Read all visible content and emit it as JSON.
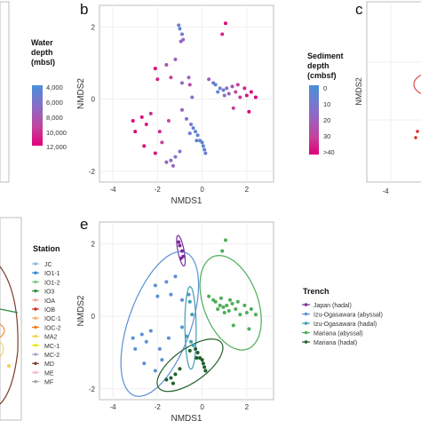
{
  "panel_labels": [
    "b",
    "c",
    "e"
  ],
  "colors": {
    "frame": "#bdbdbd",
    "grid": "#efefef",
    "depth_gradient": [
      "#4a90d9",
      "#8a6cc7",
      "#c4419c",
      "#e1007a"
    ]
  },
  "left_legend_top": {
    "title_line1": "Water",
    "title_line2": "depth",
    "title_line3": "(mbsl)",
    "ticks": [
      "4,000",
      "6,000",
      "8,000",
      "10,000",
      "12,000"
    ]
  },
  "station_legend": {
    "title": "Station",
    "items": [
      {
        "label": "JC",
        "color": "#8bb8e0"
      },
      {
        "label": "IO1-1",
        "color": "#2e82c8"
      },
      {
        "label": "IO1-2",
        "color": "#7bc67e"
      },
      {
        "label": "IO3",
        "color": "#2e8b3e"
      },
      {
        "label": "IOA",
        "color": "#f4a6a0"
      },
      {
        "label": "IOB",
        "color": "#d7261e"
      },
      {
        "label": "IOC-1",
        "color": "#f7b26a"
      },
      {
        "label": "IOC-2",
        "color": "#ef7d1a"
      },
      {
        "label": "MA2",
        "color": "#f2d24a"
      },
      {
        "label": "MC-1",
        "color": "#e6e600"
      },
      {
        "label": "MC-2",
        "color": "#b5a0d0"
      },
      {
        "label": "MD",
        "color": "#7a3e2a"
      },
      {
        "label": "ME",
        "color": "#f4b8c8"
      },
      {
        "label": "MF",
        "color": "#a6a6a6"
      }
    ]
  },
  "sediment_legend": {
    "title_line1": "Sediment",
    "title_line2": "depth",
    "title_line3": "(cmbsf)",
    "ticks": [
      "0",
      "10",
      "20",
      "30",
      ">40"
    ]
  },
  "trench_legend": {
    "title": "Trench",
    "items": [
      {
        "label": "Japan (hadal)",
        "color": "#7b2d9a"
      },
      {
        "label": "Izu-Ogasawara (abyssal)",
        "color": "#5b8fd6"
      },
      {
        "label": "Izu-Ogasawara (hadal)",
        "color": "#3c9fb0"
      },
      {
        "label": "Mariana (abyssal)",
        "color": "#4cae57"
      },
      {
        "label": "Mariana (hadal)",
        "color": "#1f5f2a"
      }
    ]
  },
  "partial_panels": {
    "c_ylabel": "NMDS2",
    "c_xtick": "-4"
  },
  "chart_data": [
    {
      "type": "scatter",
      "panel": "b",
      "xlabel": "NMDS1",
      "ylabel": "NMDS2",
      "xlim": [
        -4.6,
        3.2
      ],
      "ylim": [
        -2.3,
        2.6
      ],
      "xticks": [
        -4,
        -2,
        0,
        2
      ],
      "yticks": [
        2,
        0,
        -2
      ],
      "legend": "Sediment depth (cmbsf)",
      "points": [
        [
          -1.0,
          1.95,
          5
        ],
        [
          -0.9,
          1.8,
          10
        ],
        [
          -0.85,
          1.65,
          15
        ],
        [
          -0.95,
          1.6,
          20
        ],
        [
          -1.05,
          2.05,
          8
        ],
        [
          1.05,
          2.1,
          40
        ],
        [
          0.9,
          1.8,
          35
        ],
        [
          -2.1,
          0.85,
          40
        ],
        [
          -1.4,
          0.6,
          30
        ],
        [
          -1.6,
          0.95,
          25
        ],
        [
          -1.2,
          1.1,
          20
        ],
        [
          -2.0,
          0.55,
          35
        ],
        [
          -0.6,
          0.6,
          20
        ],
        [
          -0.9,
          0.45,
          15
        ],
        [
          -0.55,
          0.4,
          25
        ],
        [
          0.3,
          0.55,
          20
        ],
        [
          -0.45,
          0.05,
          15
        ],
        [
          0.5,
          0.45,
          10
        ],
        [
          0.6,
          0.4,
          5
        ],
        [
          0.7,
          0.2,
          5
        ],
        [
          0.8,
          0.3,
          8
        ],
        [
          0.95,
          0.25,
          10
        ],
        [
          1.0,
          0.1,
          12
        ],
        [
          1.1,
          0.3,
          15
        ],
        [
          1.2,
          0.15,
          20
        ],
        [
          1.35,
          0.35,
          25
        ],
        [
          1.5,
          0.2,
          28
        ],
        [
          1.6,
          0.4,
          30
        ],
        [
          1.7,
          0.05,
          32
        ],
        [
          1.9,
          0.3,
          35
        ],
        [
          2.0,
          0.1,
          38
        ],
        [
          2.2,
          0.2,
          40
        ],
        [
          2.4,
          0.05,
          40
        ],
        [
          1.4,
          -0.25,
          30
        ],
        [
          2.1,
          -0.35,
          40
        ],
        [
          -3.1,
          -0.6,
          40
        ],
        [
          -3.0,
          -0.9,
          40
        ],
        [
          -2.7,
          -0.5,
          38
        ],
        [
          -2.5,
          -0.7,
          36
        ],
        [
          -2.3,
          -0.4,
          32
        ],
        [
          -1.9,
          -0.9,
          35
        ],
        [
          -2.6,
          -1.3,
          40
        ],
        [
          -2.1,
          -1.5,
          38
        ],
        [
          -1.8,
          -1.2,
          30
        ],
        [
          -1.5,
          -0.6,
          28
        ],
        [
          -0.9,
          -0.3,
          20
        ],
        [
          -0.7,
          -0.55,
          15
        ],
        [
          -0.5,
          -0.7,
          10
        ],
        [
          -0.4,
          -0.8,
          8
        ],
        [
          -0.3,
          -0.9,
          5
        ],
        [
          -0.2,
          -1.0,
          5
        ],
        [
          -0.1,
          -1.15,
          6
        ],
        [
          0.0,
          -1.2,
          5
        ],
        [
          0.05,
          -1.3,
          4
        ],
        [
          0.1,
          -1.4,
          6
        ],
        [
          -0.25,
          -1.15,
          8
        ],
        [
          -0.55,
          -0.95,
          10
        ],
        [
          -1.0,
          -1.45,
          12
        ],
        [
          -1.2,
          -1.6,
          10
        ],
        [
          -1.4,
          -1.7,
          15
        ],
        [
          -1.6,
          -1.75,
          20
        ],
        [
          -1.3,
          -1.85,
          18
        ],
        [
          0.15,
          -1.5,
          10
        ]
      ]
    },
    {
      "type": "scatter",
      "panel": "e",
      "xlabel": "NMDS1",
      "ylabel": "NMDS2",
      "xlim": [
        -4.6,
        3.2
      ],
      "ylim": [
        -2.3,
        2.6
      ],
      "xticks": [
        -4,
        -2,
        0,
        2
      ],
      "yticks": [
        2,
        0,
        -2
      ],
      "legend": "Trench",
      "series": [
        {
          "name": "Japan (hadal)",
          "points": [
            [
              -1.0,
              1.95
            ],
            [
              -0.9,
              1.8
            ],
            [
              -0.85,
              1.65
            ],
            [
              -0.95,
              1.6
            ],
            [
              -1.05,
              2.05
            ]
          ]
        },
        {
          "name": "Izu-Ogasawara (abyssal)",
          "points": [
            [
              -2.1,
              0.85
            ],
            [
              -1.4,
              0.6
            ],
            [
              -1.6,
              0.95
            ],
            [
              -1.2,
              1.1
            ],
            [
              -2.0,
              0.55
            ],
            [
              -0.6,
              0.6
            ],
            [
              -0.9,
              0.45
            ],
            [
              -3.1,
              -0.6
            ],
            [
              -3.0,
              -0.9
            ],
            [
              -2.7,
              -0.5
            ],
            [
              -2.5,
              -0.7
            ],
            [
              -2.3,
              -0.4
            ],
            [
              -1.9,
              -0.9
            ],
            [
              -2.6,
              -1.3
            ],
            [
              -2.1,
              -1.5
            ],
            [
              -1.8,
              -1.2
            ],
            [
              -1.5,
              -0.6
            ],
            [
              -0.9,
              -0.3
            ]
          ]
        },
        {
          "name": "Izu-Ogasawara (hadal)",
          "points": [
            [
              -0.55,
              0.4
            ],
            [
              -0.45,
              0.05
            ],
            [
              -0.7,
              -0.55
            ],
            [
              -0.5,
              -0.7
            ],
            [
              -0.4,
              -0.8
            ]
          ]
        },
        {
          "name": "Mariana (abyssal)",
          "points": [
            [
              1.05,
              2.1
            ],
            [
              0.9,
              1.8
            ],
            [
              0.3,
              0.55
            ],
            [
              0.5,
              0.45
            ],
            [
              0.6,
              0.4
            ],
            [
              0.7,
              0.2
            ],
            [
              0.8,
              0.3
            ],
            [
              0.95,
              0.25
            ],
            [
              1.0,
              0.1
            ],
            [
              1.1,
              0.3
            ],
            [
              1.2,
              0.15
            ],
            [
              1.35,
              0.35
            ],
            [
              1.5,
              0.2
            ],
            [
              1.6,
              0.4
            ],
            [
              1.7,
              0.05
            ],
            [
              1.9,
              0.3
            ],
            [
              2.0,
              0.1
            ],
            [
              2.2,
              0.2
            ],
            [
              2.4,
              0.05
            ],
            [
              1.4,
              -0.25
            ],
            [
              2.1,
              -0.35
            ],
            [
              0.85,
              0.5
            ],
            [
              1.25,
              0.45
            ]
          ]
        },
        {
          "name": "Mariana (hadal)",
          "points": [
            [
              -0.3,
              -0.9
            ],
            [
              -0.2,
              -1.0
            ],
            [
              -0.1,
              -1.15
            ],
            [
              0.0,
              -1.2
            ],
            [
              0.05,
              -1.3
            ],
            [
              0.1,
              -1.4
            ],
            [
              -0.25,
              -1.15
            ],
            [
              -0.55,
              -0.95
            ],
            [
              -1.0,
              -1.45
            ],
            [
              -1.2,
              -1.6
            ],
            [
              -1.4,
              -1.7
            ],
            [
              -1.6,
              -1.75
            ],
            [
              -1.3,
              -1.85
            ],
            [
              0.15,
              -1.5
            ]
          ]
        }
      ]
    }
  ]
}
